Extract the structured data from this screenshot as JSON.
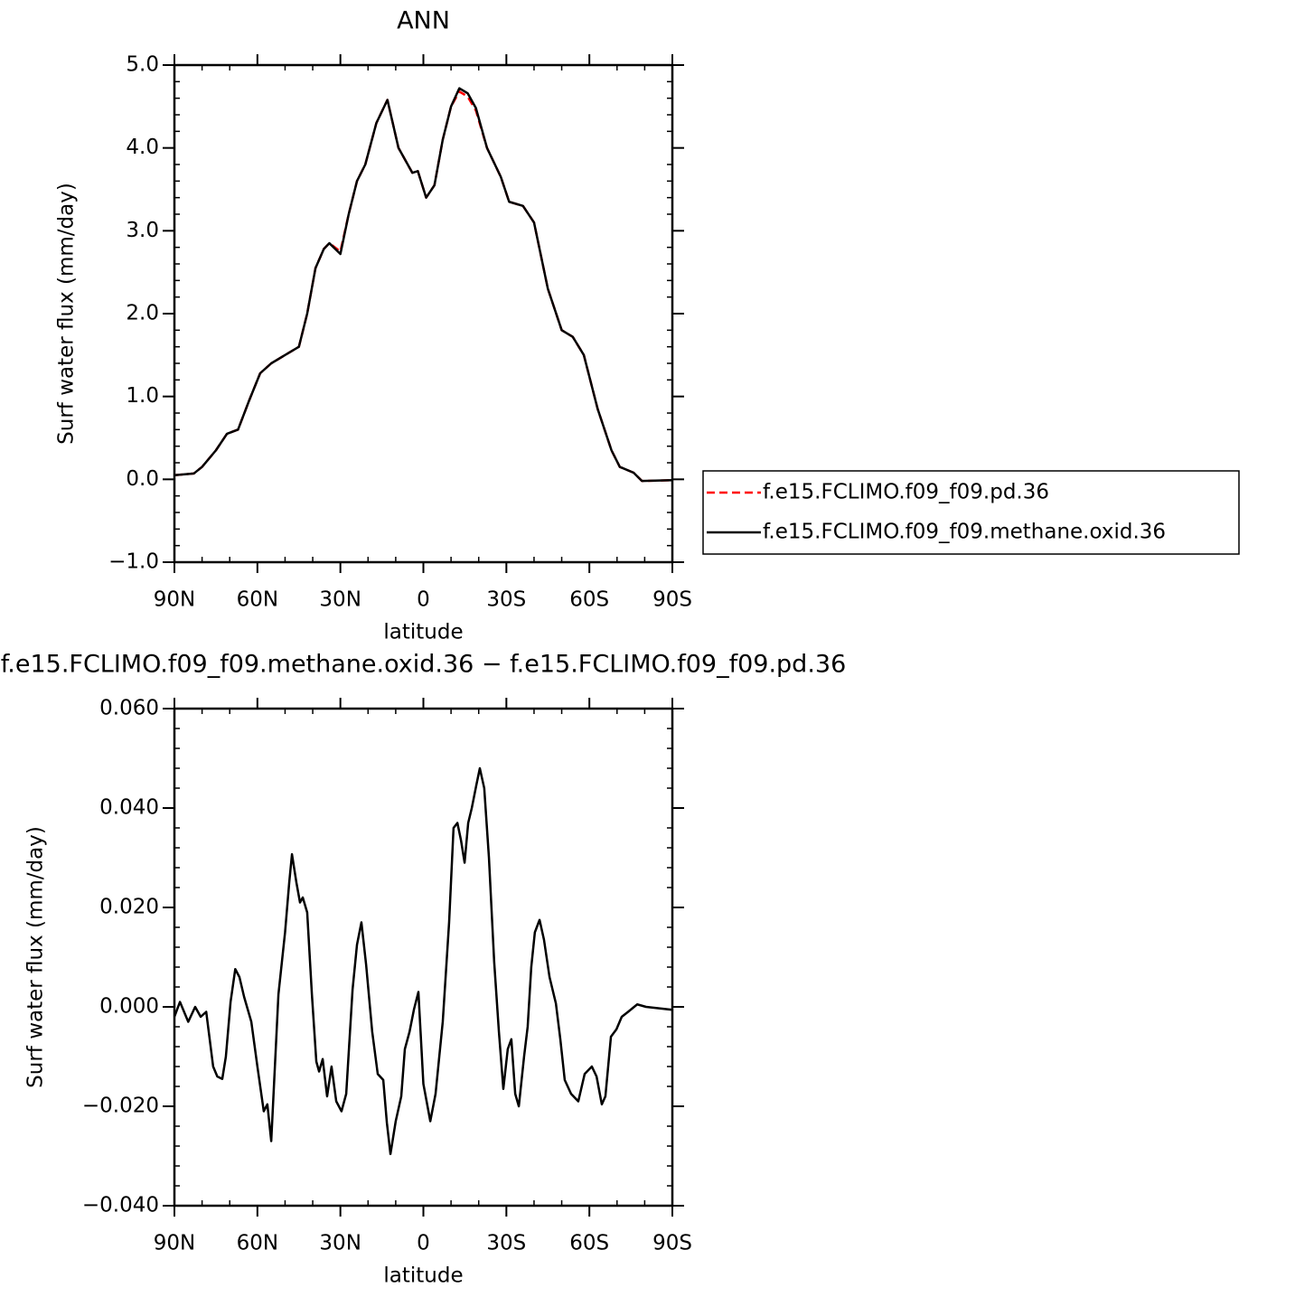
{
  "chart_data": [
    {
      "type": "line",
      "title": "ANN",
      "x_label": "latitude",
      "y_label": "Surf water flux (mm/day)",
      "x": [
        90,
        83,
        80,
        75,
        71,
        67,
        63,
        59,
        55,
        50,
        45,
        42,
        39,
        36,
        34,
        30,
        27,
        24,
        21,
        17,
        13,
        9,
        4,
        2,
        -1,
        -4,
        -7,
        -10,
        -13,
        -16,
        -19,
        -23,
        -28,
        -31,
        -36,
        -40,
        -45,
        -50,
        -54,
        -58,
        -63,
        -68,
        -71,
        -76,
        -79,
        -90
      ],
      "series": [
        {
          "name": "f.e15.FCLIMO.f09_f09.pd.36",
          "color": "#ff0000",
          "style": "dashed",
          "values": [
            0.05,
            0.07,
            0.15,
            0.35,
            0.55,
            0.6,
            0.95,
            1.28,
            1.4,
            1.5,
            1.6,
            2.0,
            2.55,
            2.78,
            2.85,
            2.75,
            3.2,
            3.6,
            3.8,
            4.3,
            4.58,
            4.0,
            3.7,
            3.72,
            3.4,
            3.55,
            4.1,
            4.5,
            4.68,
            4.62,
            4.45,
            4.0,
            3.65,
            3.35,
            3.3,
            3.1,
            2.3,
            1.8,
            1.72,
            1.5,
            0.85,
            0.35,
            0.15,
            0.08,
            -0.02,
            -0.01
          ]
        },
        {
          "name": "f.e15.FCLIMO.f09_f09.methane.oxid.36",
          "color": "#000000",
          "style": "solid",
          "values": [
            0.05,
            0.07,
            0.15,
            0.35,
            0.55,
            0.6,
            0.95,
            1.28,
            1.4,
            1.5,
            1.6,
            2.0,
            2.55,
            2.78,
            2.85,
            2.72,
            3.2,
            3.6,
            3.8,
            4.3,
            4.58,
            4.0,
            3.7,
            3.72,
            3.4,
            3.55,
            4.1,
            4.5,
            4.72,
            4.66,
            4.48,
            4.0,
            3.65,
            3.35,
            3.3,
            3.1,
            2.3,
            1.8,
            1.72,
            1.5,
            0.85,
            0.35,
            0.15,
            0.08,
            -0.02,
            -0.01
          ]
        }
      ],
      "xlim": [
        90,
        -90
      ],
      "xticks": [
        {
          "value": 90,
          "label": "90N"
        },
        {
          "value": 60,
          "label": "60N"
        },
        {
          "value": 30,
          "label": "30N"
        },
        0,
        {
          "value": -30,
          "label": "30S"
        },
        {
          "value": -60,
          "label": "60S"
        },
        {
          "value": -90,
          "label": "90S"
        }
      ],
      "ylim": [
        -1,
        5
      ],
      "yticks": [
        {
          "value": -1,
          "label": "−1.0"
        },
        {
          "value": 0,
          "label": "0.0"
        },
        {
          "value": 1,
          "label": "1.0"
        },
        {
          "value": 2,
          "label": "2.0"
        },
        {
          "value": 3,
          "label": "3.0"
        },
        {
          "value": 4,
          "label": "4.0"
        },
        {
          "value": 5,
          "label": "5.0"
        }
      ],
      "legend": "right"
    },
    {
      "type": "line",
      "title": "f.e15.FCLIMO.f09_f09.methane.oxid.36 − f.e15.FCLIMO.f09_f09.pd.36",
      "x_label": "latitude",
      "y_label": "Surf water flux (mm/day)",
      "x": [
        90,
        88,
        85,
        82.5,
        80.5,
        78.5,
        76,
        74.5,
        72.7,
        71.4,
        69.7,
        68,
        66.5,
        64.8,
        62.2,
        60,
        57.7,
        56.4,
        55,
        52.4,
        50,
        48.5,
        47.5,
        45.9,
        44.6,
        43.6,
        42,
        40.3,
        38.7,
        37.7,
        36.4,
        34.8,
        33.2,
        31.5,
        29.6,
        27.9,
        25.6,
        24,
        22.4,
        20.7,
        18.5,
        16.5,
        14.5,
        13.2,
        11.9,
        10,
        8,
        6.7,
        5,
        3.4,
        1.8,
        0,
        -2.5,
        -4.4,
        -7,
        -9.3,
        -10.9,
        -12.3,
        -13.6,
        -14.9,
        -16.2,
        -17.5,
        -19.1,
        -20.4,
        -22,
        -23.7,
        -25.6,
        -27.3,
        -28.9,
        -30.5,
        -31.8,
        -33.2,
        -34.5,
        -36.4,
        -37.7,
        -39,
        -40.3,
        -42,
        -43.6,
        -45.6,
        -47.9,
        -49.5,
        -51.1,
        -53.4,
        -56,
        -58.3,
        -60.9,
        -62.6,
        -64.5,
        -65.8,
        -67.8,
        -69.8,
        -71.7,
        -74,
        -77.3,
        -80.5,
        -90
      ],
      "series": [
        {
          "color": "#000000",
          "style": "solid",
          "values": [
            -0.002,
            0.001,
            -0.003,
            0,
            -0.002,
            -0.001,
            -0.012,
            -0.014,
            -0.0145,
            -0.01,
            0.001,
            0.0076,
            0.006,
            0.002,
            -0.003,
            -0.012,
            -0.021,
            -0.0196,
            -0.027,
            0.0025,
            0.015,
            0.025,
            0.0307,
            0.025,
            0.021,
            0.022,
            0.019,
            0.0025,
            -0.011,
            -0.013,
            -0.0105,
            -0.018,
            -0.012,
            -0.019,
            -0.021,
            -0.0175,
            0.0035,
            0.0125,
            0.017,
            0.0085,
            -0.005,
            -0.0135,
            -0.0147,
            -0.0233,
            -0.0296,
            -0.023,
            -0.018,
            -0.0085,
            -0.005,
            -0.0005,
            0.003,
            -0.0155,
            -0.023,
            -0.0175,
            -0.003,
            0.017,
            0.036,
            0.037,
            0.0335,
            0.029,
            0.037,
            0.04,
            0.0445,
            0.048,
            0.044,
            0.03,
            0.009,
            -0.005,
            -0.0165,
            -0.0085,
            -0.0065,
            -0.0175,
            -0.02,
            -0.01,
            -0.004,
            0.008,
            0.015,
            0.0175,
            0.0135,
            0.006,
            0.0007,
            -0.0065,
            -0.0147,
            -0.0175,
            -0.019,
            -0.0135,
            -0.012,
            -0.014,
            -0.0196,
            -0.018,
            -0.006,
            -0.0045,
            -0.002,
            -0.001,
            0.0005,
            0,
            -0.0006
          ]
        }
      ],
      "xlim": [
        90,
        -90
      ],
      "xticks": [
        {
          "value": 90,
          "label": "90N"
        },
        {
          "value": 60,
          "label": "60N"
        },
        {
          "value": 30,
          "label": "30N"
        },
        0,
        {
          "value": -30,
          "label": "30S"
        },
        {
          "value": -60,
          "label": "60S"
        },
        {
          "value": -90,
          "label": "90S"
        }
      ],
      "ylim": [
        -0.04,
        0.06
      ],
      "yticks": [
        {
          "value": -0.04,
          "label": "−0.040"
        },
        {
          "value": -0.02,
          "label": "−0.020"
        },
        {
          "value": 0,
          "label": "0.000"
        },
        {
          "value": 0.02,
          "label": "0.020"
        },
        {
          "value": 0.04,
          "label": "0.040"
        },
        {
          "value": 0.06,
          "label": "0.060"
        }
      ]
    }
  ]
}
